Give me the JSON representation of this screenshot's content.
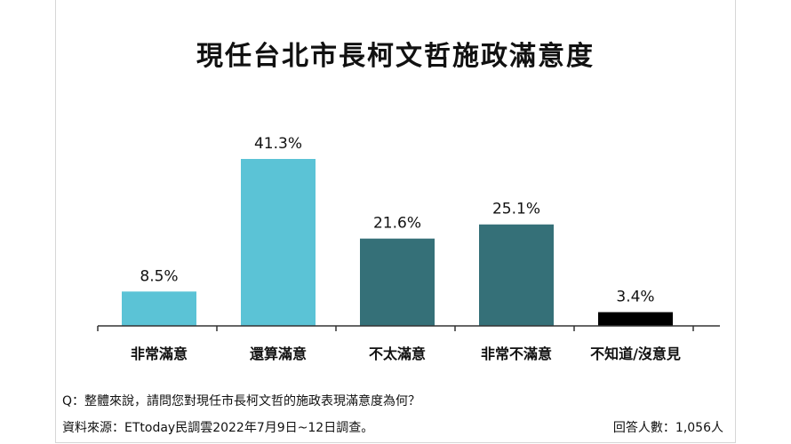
{
  "chart_data": {
    "type": "bar",
    "title": "現任台北市長柯文哲施政滿意度",
    "categories": [
      "非常滿意",
      "還算滿意",
      "不太滿意",
      "非常不滿意",
      "不知道/沒意見"
    ],
    "values": [
      8.5,
      41.3,
      21.6,
      25.1,
      3.4
    ],
    "value_labels": [
      "8.5%",
      "41.3%",
      "21.6%",
      "25.1%",
      "3.4%"
    ],
    "colors": [
      "#5bc3d6",
      "#5bc3d6",
      "#357078",
      "#357078",
      "#000000"
    ],
    "ylim": [
      0,
      45
    ],
    "grid": false,
    "legend": "none"
  },
  "notes": {
    "question": "Q：整體來說，請問您對現任市長柯文哲的施政表現滿意度為何？",
    "source": "資料來源：ETtoday民調雲2022年7月9日~12日調查。",
    "respondents": "回答人數：1,056人"
  }
}
